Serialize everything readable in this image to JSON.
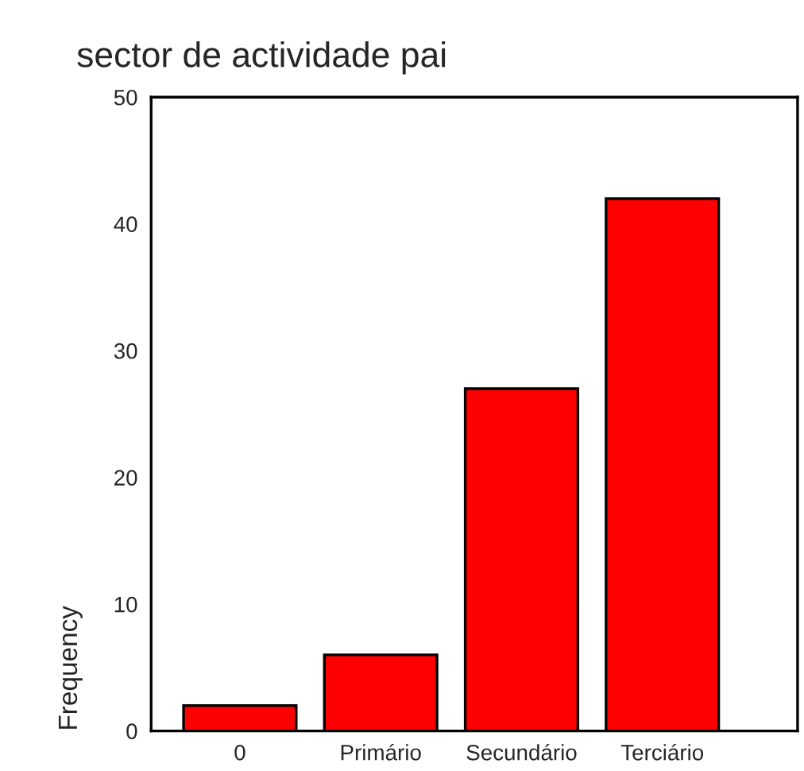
{
  "chart_data": {
    "type": "bar",
    "title": "sector de actividade pai",
    "ylabel": "Frequency",
    "categories": [
      "0",
      "Primário",
      "Secundário",
      "Terciário"
    ],
    "values": [
      2,
      6,
      27,
      42
    ],
    "color": "#ff0000",
    "ylim": [
      0,
      50
    ],
    "yticks": [
      0,
      10,
      20,
      30,
      40,
      50
    ],
    "grid": false,
    "legend": false
  }
}
